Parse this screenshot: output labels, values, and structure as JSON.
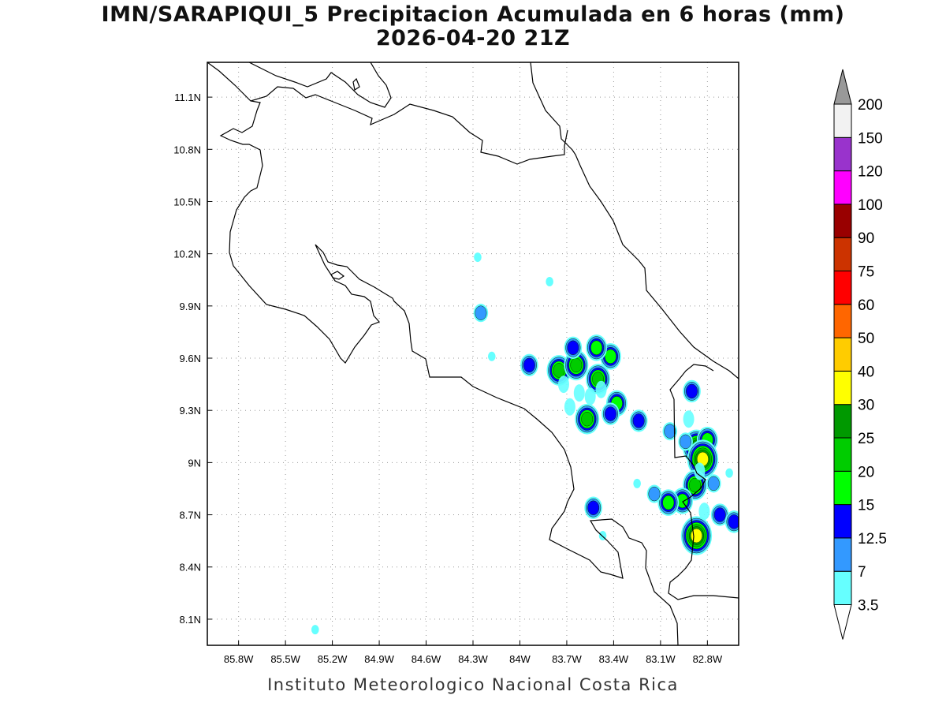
{
  "title_line1": "IMN/SARAPIQUI_5 Precipitacion Acumulada en 6 horas (mm)",
  "title_line2": "2026-04-20 21Z",
  "footer": "Instituto Meteorologico Nacional Costa Rica",
  "map": {
    "lon_range": [
      -86.0,
      -82.6
    ],
    "lat_range": [
      7.95,
      11.3
    ],
    "lon_ticks": [
      {
        "value": -85.8,
        "label": "85.8W"
      },
      {
        "value": -85.5,
        "label": "85.5W"
      },
      {
        "value": -85.2,
        "label": "85.2W"
      },
      {
        "value": -84.9,
        "label": "84.9W"
      },
      {
        "value": -84.6,
        "label": "84.6W"
      },
      {
        "value": -84.3,
        "label": "84.3W"
      },
      {
        "value": -84.0,
        "label": "84W"
      },
      {
        "value": -83.7,
        "label": "83.7W"
      },
      {
        "value": -83.4,
        "label": "83.4W"
      },
      {
        "value": -83.1,
        "label": "83.1W"
      },
      {
        "value": -82.8,
        "label": "82.8W"
      }
    ],
    "lat_ticks": [
      {
        "value": 8.1,
        "label": "8.1N"
      },
      {
        "value": 8.4,
        "label": "8.4N"
      },
      {
        "value": 8.7,
        "label": "8.7N"
      },
      {
        "value": 9.0,
        "label": "9N"
      },
      {
        "value": 9.3,
        "label": "9.3N"
      },
      {
        "value": 9.6,
        "label": "9.6N"
      },
      {
        "value": 9.9,
        "label": "9.9N"
      },
      {
        "value": 10.2,
        "label": "10.2N"
      },
      {
        "value": 10.5,
        "label": "10.5N"
      },
      {
        "value": 10.8,
        "label": "10.8N"
      },
      {
        "value": 11.1,
        "label": "11.1N"
      }
    ],
    "grid": true
  },
  "colorbar": {
    "levels": [
      {
        "label": "3.5",
        "color": "#66ffff"
      },
      {
        "label": "7",
        "color": "#3399ff"
      },
      {
        "label": "12.5",
        "color": "#0000ff"
      },
      {
        "label": "15",
        "color": "#00ff00"
      },
      {
        "label": "20",
        "color": "#00cc00"
      },
      {
        "label": "25",
        "color": "#009900"
      },
      {
        "label": "30",
        "color": "#ffff00"
      },
      {
        "label": "40",
        "color": "#ffcc00"
      },
      {
        "label": "50",
        "color": "#ff6600"
      },
      {
        "label": "60",
        "color": "#ff0000"
      },
      {
        "label": "75",
        "color": "#cc3300"
      },
      {
        "label": "90",
        "color": "#990000"
      },
      {
        "label": "100",
        "color": "#ff00ff"
      },
      {
        "label": "120",
        "color": "#9933cc"
      },
      {
        "label": "150",
        "color": "#f2f2f2"
      },
      {
        "label": "200",
        "color": ""
      }
    ],
    "top_arrow_color": "#999999",
    "bottom_arrow_color": "#ffffff"
  },
  "rain_cells": [
    {
      "lon": -83.75,
      "lat": 9.53,
      "level": 4
    },
    {
      "lon": -83.64,
      "lat": 9.56,
      "level": 4
    },
    {
      "lon": -83.5,
      "lat": 9.48,
      "level": 4
    },
    {
      "lon": -83.57,
      "lat": 9.25,
      "level": 4
    },
    {
      "lon": -83.38,
      "lat": 9.34,
      "level": 3
    },
    {
      "lon": -83.42,
      "lat": 9.28,
      "level": 2
    },
    {
      "lon": -83.42,
      "lat": 9.61,
      "level": 3
    },
    {
      "lon": -83.51,
      "lat": 9.66,
      "level": 3
    },
    {
      "lon": -83.66,
      "lat": 9.66,
      "level": 2
    },
    {
      "lon": -83.94,
      "lat": 9.56,
      "level": 2
    },
    {
      "lon": -83.24,
      "lat": 9.24,
      "level": 2
    },
    {
      "lon": -82.9,
      "lat": 9.41,
      "level": 2
    },
    {
      "lon": -82.87,
      "lat": 9.09,
      "level": 5
    },
    {
      "lon": -82.8,
      "lat": 9.13,
      "level": 3
    },
    {
      "lon": -82.83,
      "lat": 9.02,
      "level": 6
    },
    {
      "lon": -82.88,
      "lat": 8.87,
      "level": 4
    },
    {
      "lon": -82.96,
      "lat": 8.78,
      "level": 3
    },
    {
      "lon": -83.05,
      "lat": 8.77,
      "level": 3
    },
    {
      "lon": -82.87,
      "lat": 8.58,
      "level": 6
    },
    {
      "lon": -82.72,
      "lat": 8.7,
      "level": 2
    },
    {
      "lon": -82.63,
      "lat": 8.66,
      "level": 2
    },
    {
      "lon": -83.53,
      "lat": 8.74,
      "level": 2
    },
    {
      "lon": -83.14,
      "lat": 8.82,
      "level": 1
    },
    {
      "lon": -83.04,
      "lat": 9.18,
      "level": 1
    },
    {
      "lon": -84.27,
      "lat": 10.18,
      "level": 0
    },
    {
      "lon": -83.81,
      "lat": 10.04,
      "level": 0
    },
    {
      "lon": -84.25,
      "lat": 9.86,
      "level": 1
    },
    {
      "lon": -84.18,
      "lat": 9.61,
      "level": 0
    },
    {
      "lon": -83.47,
      "lat": 8.58,
      "level": 0
    },
    {
      "lon": -85.31,
      "lat": 8.04,
      "level": 0
    },
    {
      "lon": -82.66,
      "lat": 8.94,
      "level": 0
    },
    {
      "lon": -82.76,
      "lat": 8.88,
      "level": 1
    },
    {
      "lon": -82.94,
      "lat": 9.12,
      "level": 1
    },
    {
      "lon": -83.25,
      "lat": 8.88,
      "level": 0
    }
  ]
}
